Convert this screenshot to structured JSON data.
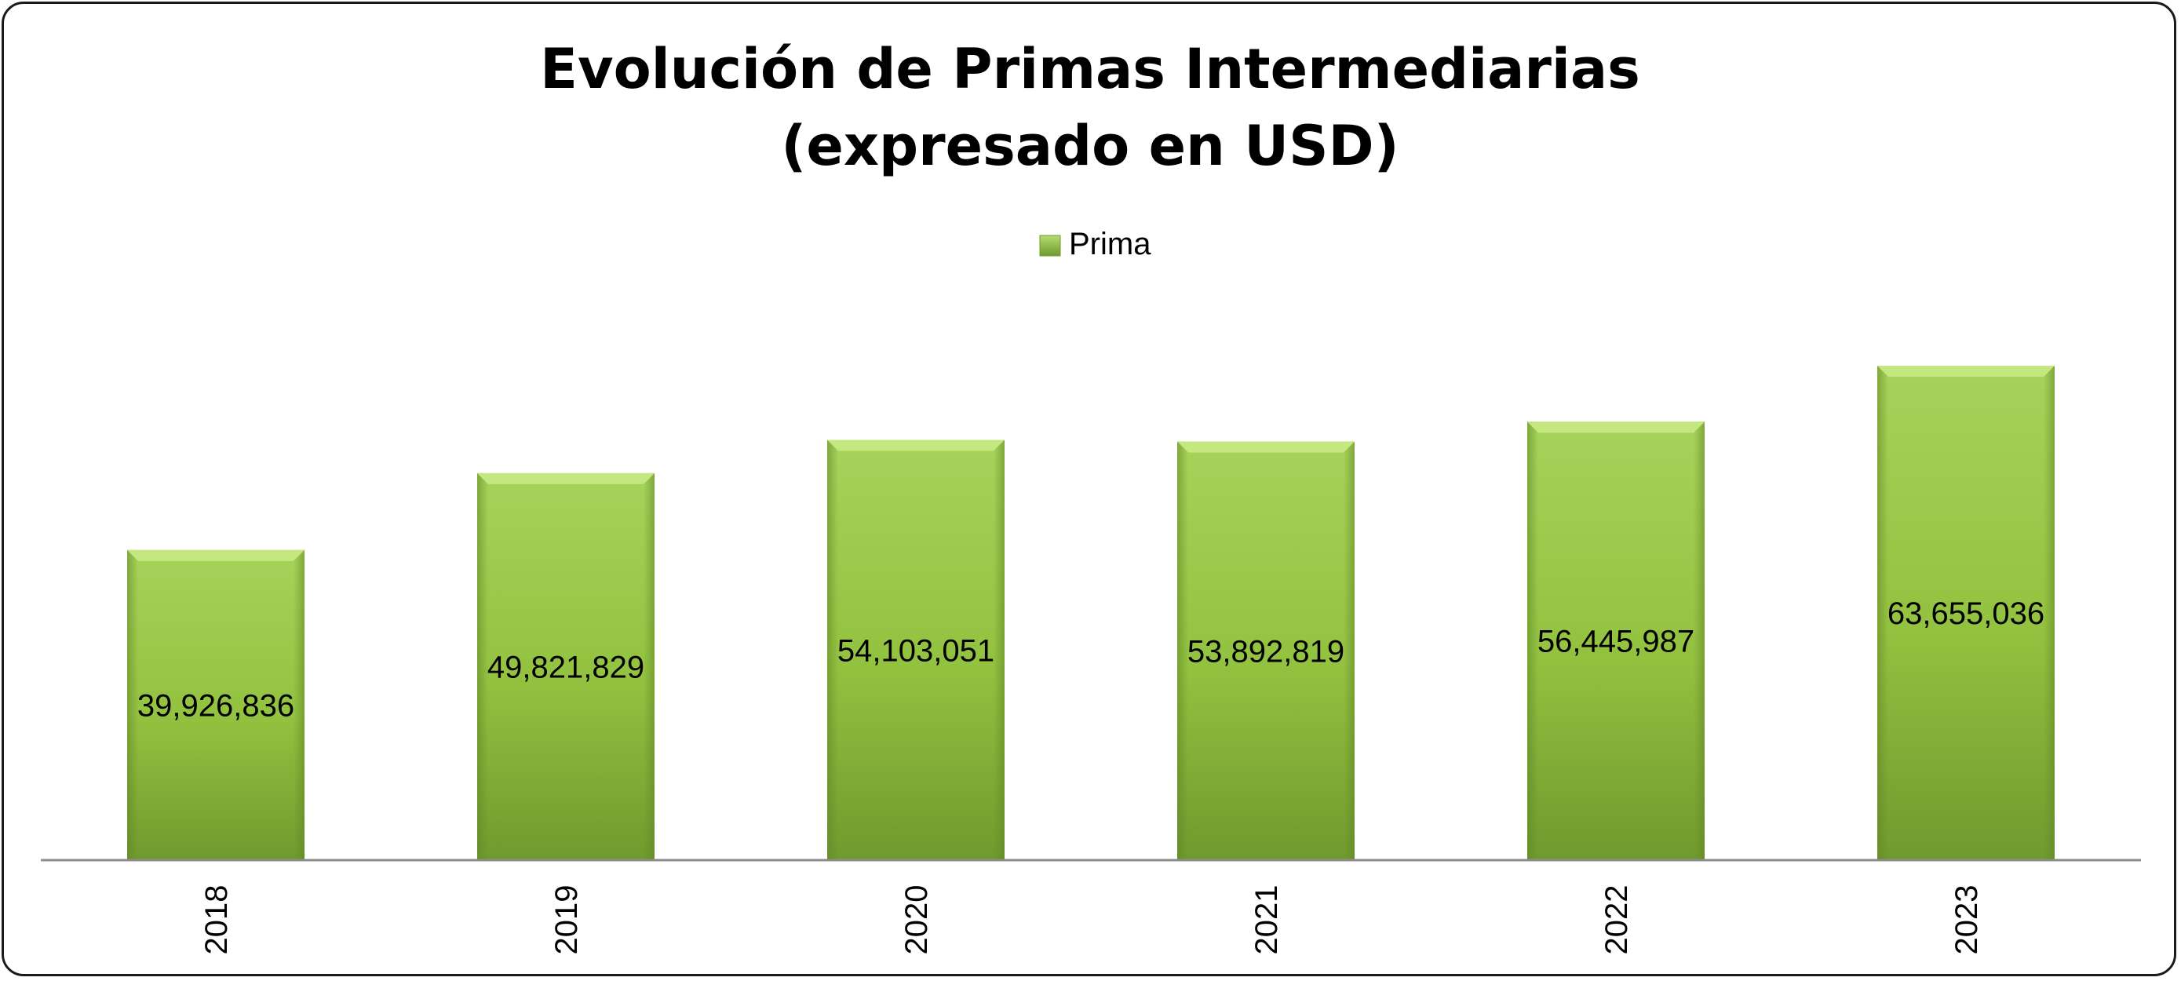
{
  "chart_data": {
    "type": "bar",
    "title_line1": "Evolución de Primas Intermediarias",
    "title_line2": "(expresado en USD)",
    "legend": [
      "Prima"
    ],
    "legend_position": "top-center",
    "series": [
      {
        "name": "Prima",
        "values": [
          39926836,
          49821829,
          54103051,
          53892819,
          56445987,
          63655036
        ]
      }
    ],
    "categories": [
      "2018",
      "2019",
      "2020",
      "2021",
      "2022",
      "2023"
    ],
    "data_labels": [
      "39,926,836",
      "49,821,829",
      "54,103,051",
      "53,892,819",
      "56,445,987",
      "63,655,036"
    ],
    "xlabel": "",
    "ylabel": "",
    "ylim": [
      0,
      80000000
    ],
    "grid": false,
    "colors": {
      "bar_top": "#a6d35a",
      "bar_mid": "#92c13f",
      "bar_bottom": "#6f9a2e",
      "bar_bevel": "#c4e87f",
      "axis": "#8c8c8c"
    }
  }
}
